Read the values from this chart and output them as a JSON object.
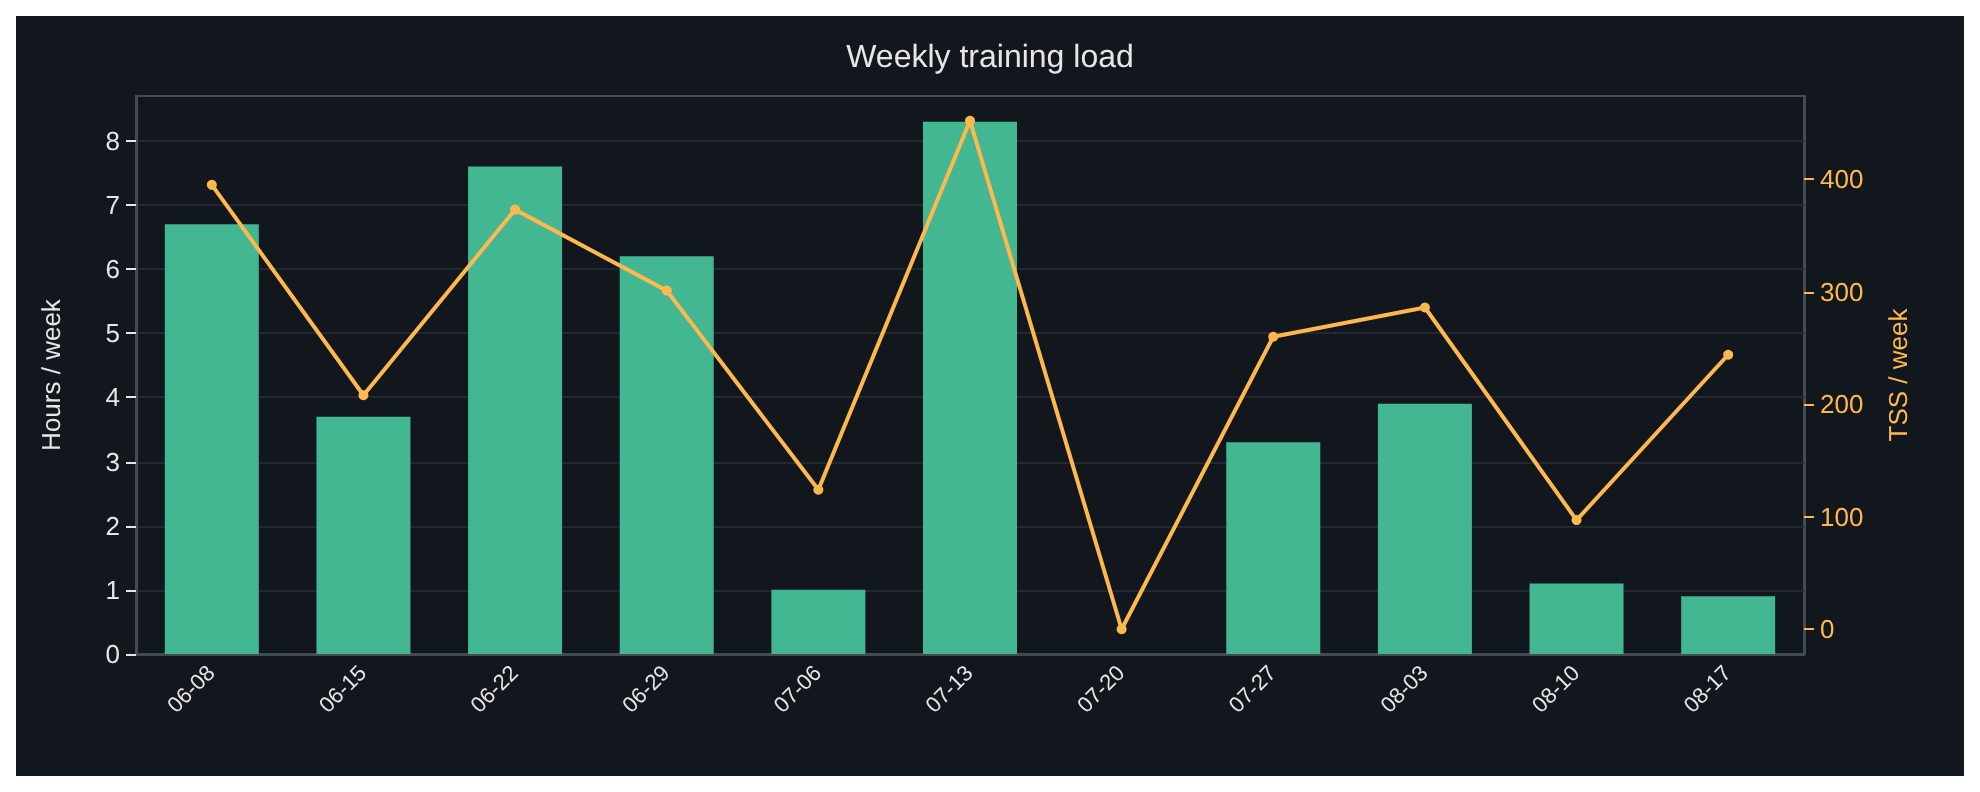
{
  "chart_data": {
    "type": "bar",
    "title": "Weekly training load",
    "ylabel": "Hours / week",
    "y2label": "TSS / week",
    "categories": [
      "06-08",
      "06-15",
      "06-22",
      "06-29",
      "07-06",
      "07-13",
      "07-20",
      "07-27",
      "08-03",
      "08-10",
      "08-17"
    ],
    "series": [
      {
        "color": "#43b692",
        "values": [
          6.7,
          3.7,
          7.6,
          6.2,
          1.0,
          8.3,
          0,
          3.3,
          3.9,
          1.1,
          0.9
        ]
      },
      {
        "type": "line",
        "axis": "y2",
        "color": "#ffb84d",
        "values": [
          395,
          208,
          373,
          301,
          124,
          452,
          0,
          260,
          286,
          97,
          244
        ]
      }
    ],
    "ylim": [
      0,
      8.7
    ],
    "yticks": [
      0,
      1,
      2,
      3,
      4,
      5,
      6,
      7,
      8
    ],
    "y2lim": [
      -22,
      474
    ],
    "y2ticks": [
      0,
      100,
      200,
      300,
      400
    ],
    "grid": "y",
    "marker": "circle",
    "line_style": "solid"
  }
}
